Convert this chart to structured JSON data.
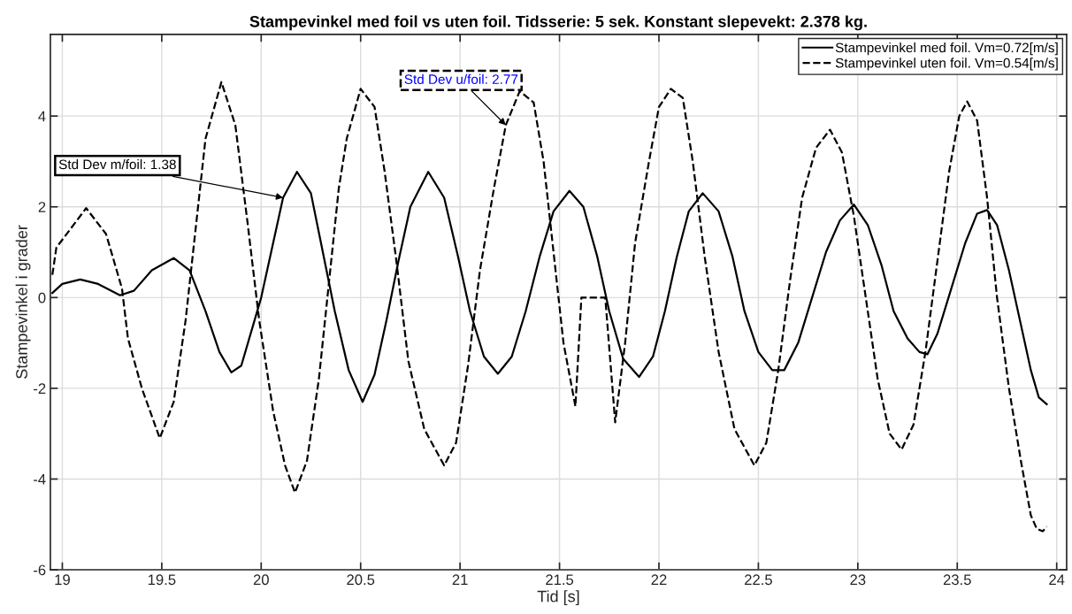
{
  "chart_data": {
    "type": "line",
    "title": "Stampevinkel med foil vs uten foil. Tidsserie: 5 sek. Konstant slepevekt: 2.378 kg.",
    "xlabel": "Tid [s]",
    "ylabel": "Stampevinkel i grader",
    "xlim": [
      18.94,
      24.05
    ],
    "ylim": [
      -6,
      5.8
    ],
    "xticks": [
      19,
      19.5,
      20,
      20.5,
      21,
      21.5,
      22,
      22.5,
      23,
      23.5,
      24
    ],
    "yticks": [
      -6,
      -4,
      -2,
      0,
      2,
      4
    ],
    "grid": true,
    "legend": "top right",
    "marker": "none",
    "annotations": [
      {
        "text": "Std Dev m/foil: 1.38",
        "x": 20.11,
        "y": 2.2
      },
      {
        "text": "Std Dev u/foil: 2.77",
        "x": 21.23,
        "y": 3.8
      }
    ],
    "series": [
      {
        "name": "Stampevinkel med foil. Vm=0.72[m/s]",
        "color": "#000000",
        "line_style": "solid",
        "x": [
          18.95,
          19.0,
          19.09,
          19.18,
          19.29,
          19.36,
          19.45,
          19.56,
          19.64,
          19.72,
          19.79,
          19.85,
          19.9,
          19.96,
          20.0,
          20.05,
          20.11,
          20.18,
          20.25,
          20.31,
          20.37,
          20.44,
          20.51,
          20.57,
          20.63,
          20.69,
          20.75,
          20.84,
          20.92,
          20.99,
          21.05,
          21.12,
          21.19,
          21.26,
          21.33,
          21.4,
          21.47,
          21.55,
          21.62,
          21.69,
          21.75,
          21.82,
          21.9,
          21.97,
          22.03,
          22.09,
          22.15,
          22.22,
          22.3,
          22.37,
          22.43,
          22.5,
          22.57,
          22.63,
          22.7,
          22.77,
          22.84,
          22.91,
          22.98,
          23.05,
          23.12,
          23.18,
          23.25,
          23.31,
          23.35,
          23.4,
          23.47,
          23.54,
          23.6,
          23.65,
          23.7,
          23.76,
          23.82,
          23.87,
          23.91,
          23.95
        ],
        "values": [
          0.1,
          0.3,
          0.4,
          0.3,
          0.05,
          0.15,
          0.6,
          0.87,
          0.6,
          -0.3,
          -1.2,
          -1.65,
          -1.5,
          -0.6,
          0.0,
          1.0,
          2.2,
          2.77,
          2.3,
          1.0,
          -0.3,
          -1.6,
          -2.3,
          -1.7,
          -0.5,
          0.8,
          2.0,
          2.77,
          2.2,
          0.9,
          -0.3,
          -1.3,
          -1.68,
          -1.3,
          -0.3,
          0.9,
          1.9,
          2.35,
          2.0,
          0.9,
          -0.3,
          -1.35,
          -1.75,
          -1.3,
          -0.3,
          0.9,
          1.9,
          2.3,
          1.9,
          0.9,
          -0.3,
          -1.2,
          -1.6,
          -1.6,
          -1.0,
          0.0,
          1.0,
          1.7,
          2.05,
          1.6,
          0.7,
          -0.3,
          -0.9,
          -1.2,
          -1.25,
          -0.8,
          0.2,
          1.2,
          1.85,
          1.93,
          1.6,
          0.6,
          -0.6,
          -1.6,
          -2.2,
          -2.35
        ]
      },
      {
        "name": "Stampevinkel uten foil. Vm=0.54[m/s]",
        "color": "#000000",
        "line_style": "dashed",
        "x": [
          18.95,
          18.97,
          19.12,
          19.22,
          19.3,
          19.33,
          19.4,
          19.49,
          19.56,
          19.62,
          19.67,
          19.72,
          19.8,
          19.87,
          19.93,
          19.99,
          20.06,
          20.12,
          20.17,
          20.23,
          20.29,
          20.34,
          20.39,
          20.43,
          20.5,
          20.57,
          20.62,
          20.68,
          20.74,
          20.82,
          20.92,
          20.98,
          21.04,
          21.1,
          21.17,
          21.23,
          21.3,
          21.37,
          21.42,
          21.47,
          21.52,
          21.58,
          21.61,
          21.73,
          21.78,
          21.83,
          21.88,
          21.95,
          22.0,
          22.06,
          22.12,
          22.17,
          22.23,
          22.3,
          22.38,
          22.48,
          22.54,
          22.6,
          22.66,
          22.72,
          22.79,
          22.86,
          22.92,
          22.98,
          23.04,
          23.1,
          23.16,
          23.22,
          23.28,
          23.34,
          23.4,
          23.46,
          23.51,
          23.55,
          23.6,
          23.65,
          23.7,
          23.76,
          23.82,
          23.87,
          23.9,
          23.93,
          23.95
        ],
        "values": [
          0.5,
          1.1,
          1.97,
          1.4,
          0.2,
          -0.9,
          -2.0,
          -3.1,
          -2.3,
          -0.5,
          1.5,
          3.5,
          4.75,
          3.8,
          1.7,
          -0.5,
          -2.5,
          -3.7,
          -4.3,
          -3.6,
          -1.8,
          0.3,
          2.4,
          3.5,
          4.6,
          4.2,
          2.8,
          0.8,
          -1.4,
          -2.9,
          -3.7,
          -3.2,
          -1.5,
          0.6,
          2.4,
          3.8,
          4.55,
          4.3,
          3.0,
          1.0,
          -1.0,
          -2.4,
          0.0,
          0.0,
          -2.75,
          -1.0,
          1.2,
          3.0,
          4.2,
          4.6,
          4.4,
          3.0,
          0.9,
          -1.2,
          -2.9,
          -3.7,
          -3.2,
          -1.6,
          0.4,
          2.2,
          3.3,
          3.7,
          3.2,
          1.8,
          0.0,
          -1.8,
          -3.0,
          -3.35,
          -2.8,
          -1.2,
          0.8,
          2.8,
          4.0,
          4.32,
          3.9,
          2.2,
          0.0,
          -2.0,
          -3.6,
          -4.8,
          -5.1,
          -5.15,
          -5.05
        ]
      }
    ]
  }
}
